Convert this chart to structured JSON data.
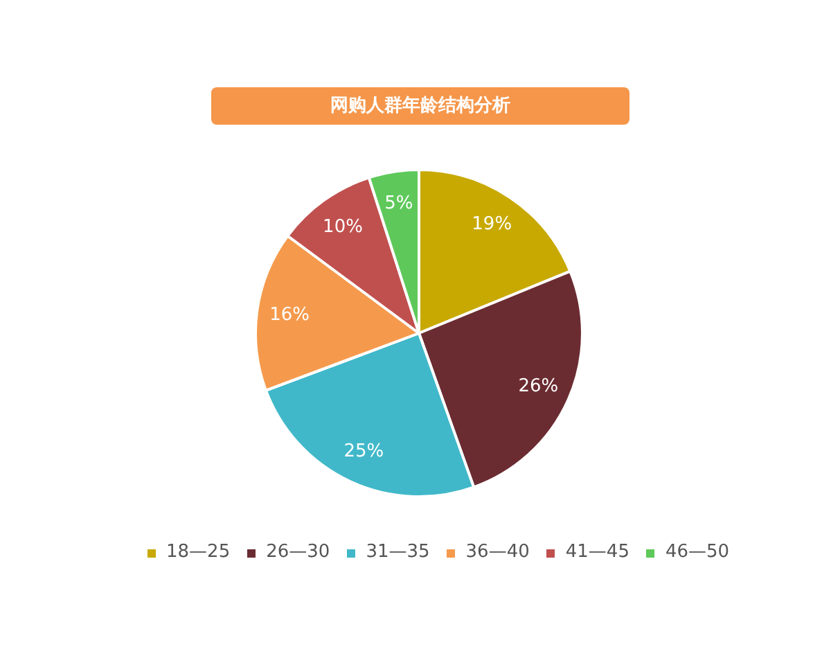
{
  "chart_data": {
    "type": "pie",
    "title": "网购人群年龄结构分析",
    "categories": [
      "18—25",
      "26—30",
      "31—35",
      "36—40",
      "41—45",
      "46—50"
    ],
    "values": [
      19,
      26,
      25,
      16,
      10,
      5
    ],
    "colors": [
      "#c8a902",
      "#6b2c31",
      "#40b8c9",
      "#f59a4c",
      "#c0504e",
      "#5ec95a"
    ],
    "value_labels": [
      "19%",
      "26%",
      "25%",
      "16%",
      "10%",
      "5%"
    ],
    "legend": "bottom"
  }
}
